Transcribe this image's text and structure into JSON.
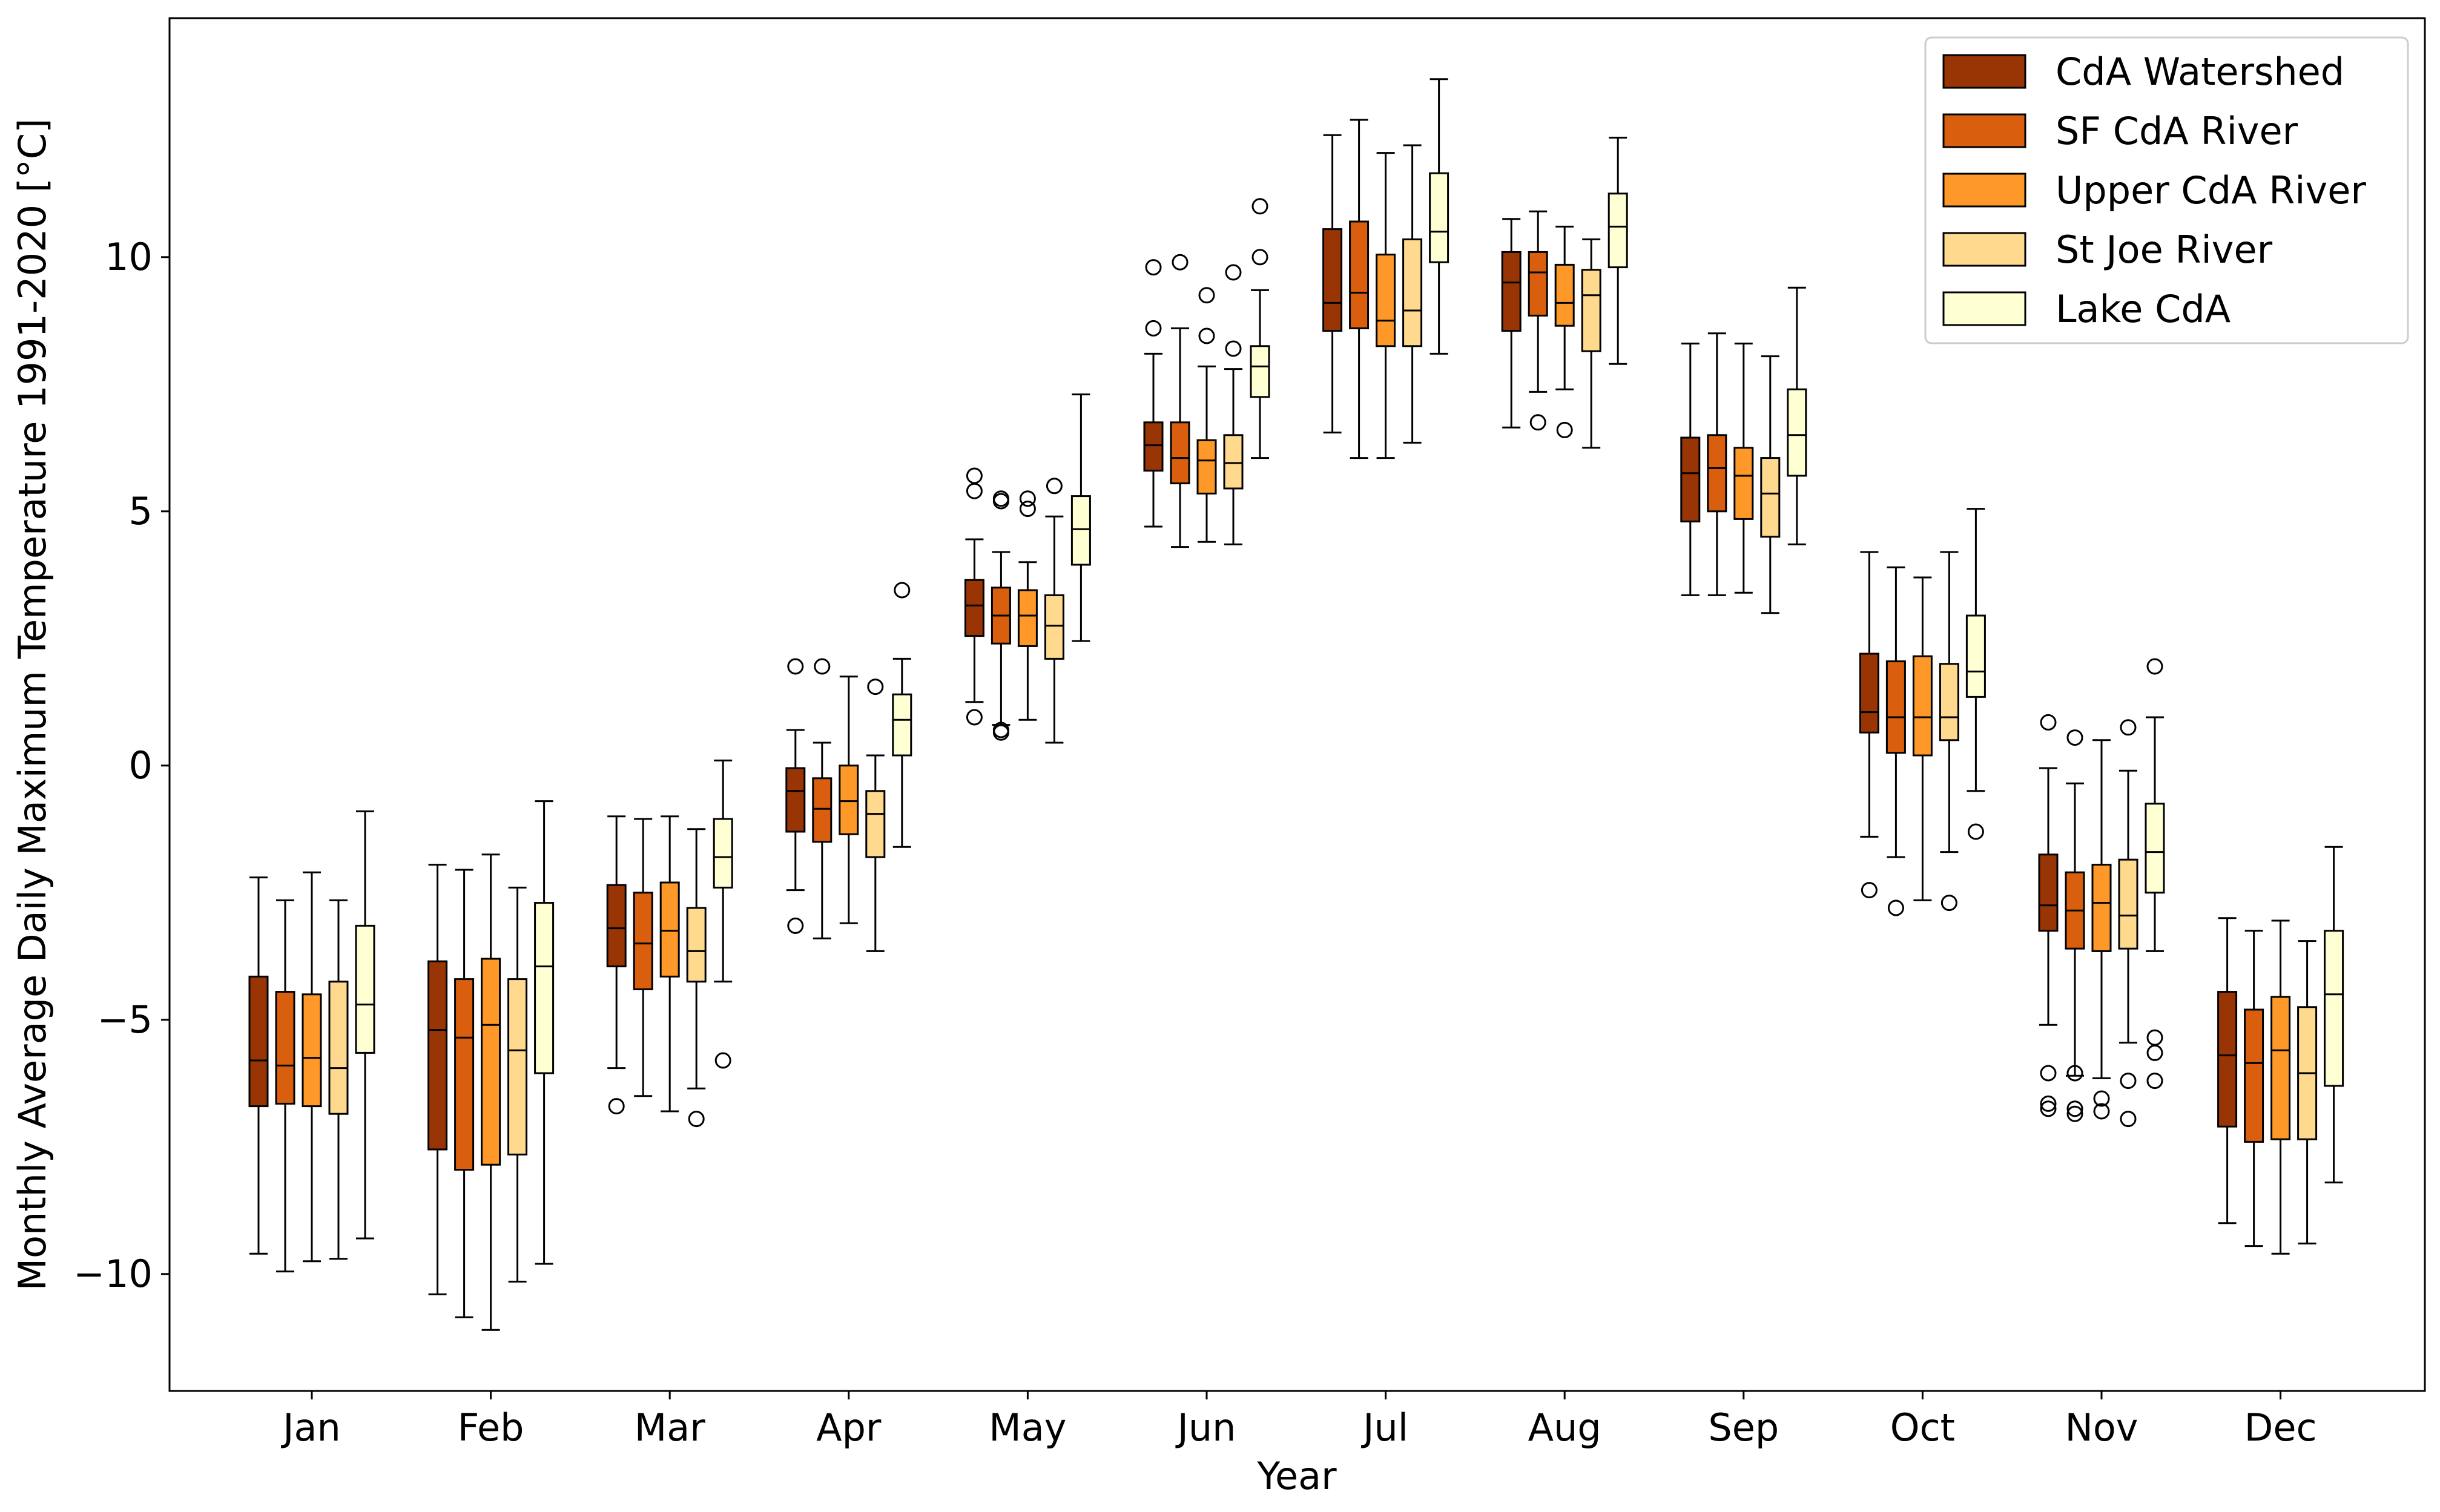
{
  "chart_data": {
    "type": "box",
    "title": "",
    "xlabel": "Year",
    "ylabel": "Monthly Average Daily Maximum Temperature 1991-2020 [°C]",
    "ylim": [
      -12.3,
      14.7
    ],
    "yticks": [
      -10,
      -5,
      0,
      5,
      10
    ],
    "ytick_labels": [
      "−10",
      "−5",
      "0",
      "5",
      "10"
    ],
    "grid": false,
    "legend_position": "top-right",
    "categories": [
      "Jan",
      "Feb",
      "Mar",
      "Apr",
      "May",
      "Jun",
      "Jul",
      "Aug",
      "Sep",
      "Oct",
      "Nov",
      "Dec"
    ],
    "series": [
      {
        "name": "CdA Watershed",
        "color": "#993404",
        "boxes": [
          {
            "whislo": -9.6,
            "q1": -6.7,
            "med": -5.8,
            "q3": -4.15,
            "whishi": -2.2,
            "fliers": []
          },
          {
            "whislo": -10.4,
            "q1": -7.55,
            "med": -5.2,
            "q3": -3.85,
            "whishi": -1.95,
            "fliers": []
          },
          {
            "whislo": -5.95,
            "q1": -3.95,
            "med": -3.2,
            "q3": -2.35,
            "whishi": -1.0,
            "fliers": [
              -6.7
            ]
          },
          {
            "whislo": -2.45,
            "q1": -1.3,
            "med": -0.5,
            "q3": -0.05,
            "whishi": 0.7,
            "fliers": [
              1.95,
              -3.15
            ]
          },
          {
            "whislo": 1.25,
            "q1": 2.55,
            "med": 3.15,
            "q3": 3.65,
            "whishi": 4.45,
            "fliers": [
              5.7,
              5.4,
              0.95
            ]
          },
          {
            "whislo": 4.7,
            "q1": 5.8,
            "med": 6.3,
            "q3": 6.75,
            "whishi": 8.1,
            "fliers": [
              9.8,
              8.6
            ]
          },
          {
            "whislo": 6.55,
            "q1": 8.55,
            "med": 9.1,
            "q3": 10.55,
            "whishi": 12.4,
            "fliers": []
          },
          {
            "whislo": 6.65,
            "q1": 8.55,
            "med": 9.5,
            "q3": 10.1,
            "whishi": 10.75,
            "fliers": []
          },
          {
            "whislo": 3.35,
            "q1": 4.8,
            "med": 5.75,
            "q3": 6.45,
            "whishi": 8.3,
            "fliers": []
          },
          {
            "whislo": -1.4,
            "q1": 0.65,
            "med": 1.05,
            "q3": 2.2,
            "whishi": 4.2,
            "fliers": [
              -2.45
            ]
          },
          {
            "whislo": -5.1,
            "q1": -3.25,
            "med": -2.75,
            "q3": -1.75,
            "whishi": -0.05,
            "fliers": [
              0.85,
              -6.05,
              -6.65,
              -6.75
            ]
          },
          {
            "whislo": -9.0,
            "q1": -7.1,
            "med": -5.7,
            "q3": -4.45,
            "whishi": -3.0,
            "fliers": []
          }
        ]
      },
      {
        "name": "SF CdA River",
        "color": "#d95f0e",
        "boxes": [
          {
            "whislo": -9.95,
            "q1": -6.65,
            "med": -5.9,
            "q3": -4.45,
            "whishi": -2.65,
            "fliers": []
          },
          {
            "whislo": -10.85,
            "q1": -7.95,
            "med": -5.35,
            "q3": -4.2,
            "whishi": -2.05,
            "fliers": []
          },
          {
            "whislo": -6.5,
            "q1": -4.4,
            "med": -3.5,
            "q3": -2.5,
            "whishi": -1.05,
            "fliers": []
          },
          {
            "whislo": -3.4,
            "q1": -1.5,
            "med": -0.85,
            "q3": -0.25,
            "whishi": 0.45,
            "fliers": [
              1.95
            ]
          },
          {
            "whislo": 0.8,
            "q1": 2.4,
            "med": 2.95,
            "q3": 3.5,
            "whishi": 4.2,
            "fliers": [
              5.25,
              5.2,
              0.65,
              0.7
            ]
          },
          {
            "whislo": 4.3,
            "q1": 5.55,
            "med": 6.05,
            "q3": 6.75,
            "whishi": 8.6,
            "fliers": [
              9.9
            ]
          },
          {
            "whislo": 6.05,
            "q1": 8.6,
            "med": 9.3,
            "q3": 10.7,
            "whishi": 12.7,
            "fliers": []
          },
          {
            "whislo": 7.35,
            "q1": 8.85,
            "med": 9.7,
            "q3": 10.1,
            "whishi": 10.9,
            "fliers": [
              6.75
            ]
          },
          {
            "whislo": 3.35,
            "q1": 5.0,
            "med": 5.85,
            "q3": 6.5,
            "whishi": 8.5,
            "fliers": []
          },
          {
            "whislo": -1.8,
            "q1": 0.25,
            "med": 0.95,
            "q3": 2.05,
            "whishi": 3.9,
            "fliers": [
              -2.8
            ]
          },
          {
            "whislo": -6.1,
            "q1": -3.6,
            "med": -2.85,
            "q3": -2.1,
            "whishi": -0.35,
            "fliers": [
              0.55,
              -6.05,
              -6.75,
              -6.85
            ]
          },
          {
            "whislo": -9.45,
            "q1": -7.4,
            "med": -5.85,
            "q3": -4.8,
            "whishi": -3.25,
            "fliers": []
          }
        ]
      },
      {
        "name": "Upper CdA River",
        "color": "#fe9929",
        "boxes": [
          {
            "whislo": -9.75,
            "q1": -6.7,
            "med": -5.75,
            "q3": -4.5,
            "whishi": -2.1,
            "fliers": []
          },
          {
            "whislo": -11.1,
            "q1": -7.85,
            "med": -5.1,
            "q3": -3.8,
            "whishi": -1.75,
            "fliers": []
          },
          {
            "whislo": -6.8,
            "q1": -4.15,
            "med": -3.25,
            "q3": -2.3,
            "whishi": -1.0,
            "fliers": []
          },
          {
            "whislo": -3.1,
            "q1": -1.35,
            "med": -0.7,
            "q3": 0.0,
            "whishi": 1.75,
            "fliers": []
          },
          {
            "whislo": 0.9,
            "q1": 2.35,
            "med": 2.95,
            "q3": 3.45,
            "whishi": 4.0,
            "fliers": [
              5.25,
              5.05
            ]
          },
          {
            "whislo": 4.4,
            "q1": 5.35,
            "med": 6.0,
            "q3": 6.4,
            "whishi": 7.85,
            "fliers": [
              9.25,
              8.45
            ]
          },
          {
            "whislo": 6.05,
            "q1": 8.25,
            "med": 8.75,
            "q3": 10.05,
            "whishi": 12.05,
            "fliers": []
          },
          {
            "whislo": 7.4,
            "q1": 8.65,
            "med": 9.1,
            "q3": 9.85,
            "whishi": 10.6,
            "fliers": [
              6.6
            ]
          },
          {
            "whislo": 3.4,
            "q1": 4.85,
            "med": 5.7,
            "q3": 6.25,
            "whishi": 8.3,
            "fliers": []
          },
          {
            "whislo": -2.65,
            "q1": 0.2,
            "med": 0.95,
            "q3": 2.15,
            "whishi": 3.7,
            "fliers": []
          },
          {
            "whislo": -6.15,
            "q1": -3.65,
            "med": -2.7,
            "q3": -1.95,
            "whishi": 0.5,
            "fliers": [
              -6.55,
              -6.8
            ]
          },
          {
            "whislo": -9.6,
            "q1": -7.35,
            "med": -5.6,
            "q3": -4.55,
            "whishi": -3.05,
            "fliers": []
          }
        ]
      },
      {
        "name": "St Joe River",
        "color": "#fed98e",
        "boxes": [
          {
            "whislo": -9.7,
            "q1": -6.85,
            "med": -5.95,
            "q3": -4.25,
            "whishi": -2.65,
            "fliers": []
          },
          {
            "whislo": -10.15,
            "q1": -7.65,
            "med": -5.6,
            "q3": -4.2,
            "whishi": -2.4,
            "fliers": []
          },
          {
            "whislo": -6.35,
            "q1": -4.25,
            "med": -3.65,
            "q3": -2.8,
            "whishi": -1.25,
            "fliers": [
              -6.95
            ]
          },
          {
            "whislo": -3.65,
            "q1": -1.8,
            "med": -0.95,
            "q3": -0.5,
            "whishi": 0.2,
            "fliers": [
              1.55
            ]
          },
          {
            "whislo": 0.45,
            "q1": 2.1,
            "med": 2.75,
            "q3": 3.35,
            "whishi": 4.9,
            "fliers": [
              5.5
            ]
          },
          {
            "whislo": 4.35,
            "q1": 5.45,
            "med": 5.95,
            "q3": 6.5,
            "whishi": 7.8,
            "fliers": [
              9.7,
              8.2
            ]
          },
          {
            "whislo": 6.35,
            "q1": 8.25,
            "med": 8.95,
            "q3": 10.35,
            "whishi": 12.2,
            "fliers": []
          },
          {
            "whislo": 6.25,
            "q1": 8.15,
            "med": 9.25,
            "q3": 9.75,
            "whishi": 10.35,
            "fliers": []
          },
          {
            "whislo": 3.0,
            "q1": 4.5,
            "med": 5.35,
            "q3": 6.05,
            "whishi": 8.05,
            "fliers": []
          },
          {
            "whislo": -1.7,
            "q1": 0.5,
            "med": 0.95,
            "q3": 2.0,
            "whishi": 4.2,
            "fliers": [
              -2.7
            ]
          },
          {
            "whislo": -5.45,
            "q1": -3.6,
            "med": -2.95,
            "q3": -1.85,
            "whishi": -0.1,
            "fliers": [
              0.75,
              -6.2,
              -6.95
            ]
          },
          {
            "whislo": -9.4,
            "q1": -7.35,
            "med": -6.05,
            "q3": -4.75,
            "whishi": -3.45,
            "fliers": []
          }
        ]
      },
      {
        "name": "Lake CdA",
        "color": "#ffffd4",
        "boxes": [
          {
            "whislo": -9.3,
            "q1": -5.65,
            "med": -4.7,
            "q3": -3.15,
            "whishi": -0.9,
            "fliers": []
          },
          {
            "whislo": -9.8,
            "q1": -6.05,
            "med": -3.95,
            "q3": -2.7,
            "whishi": -0.7,
            "fliers": []
          },
          {
            "whislo": -4.25,
            "q1": -2.4,
            "med": -1.8,
            "q3": -1.05,
            "whishi": 0.1,
            "fliers": [
              -5.8
            ]
          },
          {
            "whislo": -1.6,
            "q1": 0.2,
            "med": 0.9,
            "q3": 1.4,
            "whishi": 2.1,
            "fliers": [
              3.45
            ]
          },
          {
            "whislo": 2.45,
            "q1": 3.95,
            "med": 4.65,
            "q3": 5.3,
            "whishi": 7.3,
            "fliers": []
          },
          {
            "whislo": 6.05,
            "q1": 7.25,
            "med": 7.85,
            "q3": 8.25,
            "whishi": 9.35,
            "fliers": [
              11.0,
              10.0
            ]
          },
          {
            "whislo": 8.1,
            "q1": 9.9,
            "med": 10.5,
            "q3": 11.65,
            "whishi": 13.5,
            "fliers": []
          },
          {
            "whislo": 7.9,
            "q1": 9.8,
            "med": 10.6,
            "q3": 11.25,
            "whishi": 12.35,
            "fliers": []
          },
          {
            "whislo": 4.35,
            "q1": 5.7,
            "med": 6.5,
            "q3": 7.4,
            "whishi": 9.4,
            "fliers": []
          },
          {
            "whislo": -0.5,
            "q1": 1.35,
            "med": 1.85,
            "q3": 2.95,
            "whishi": 5.05,
            "fliers": [
              -1.3
            ]
          },
          {
            "whislo": -3.65,
            "q1": -2.5,
            "med": -1.7,
            "q3": -0.75,
            "whishi": 0.95,
            "fliers": [
              1.95,
              -5.35,
              -5.65,
              -6.2
            ]
          },
          {
            "whislo": -8.2,
            "q1": -6.3,
            "med": -4.5,
            "q3": -3.25,
            "whishi": -1.6,
            "fliers": []
          }
        ]
      }
    ]
  }
}
